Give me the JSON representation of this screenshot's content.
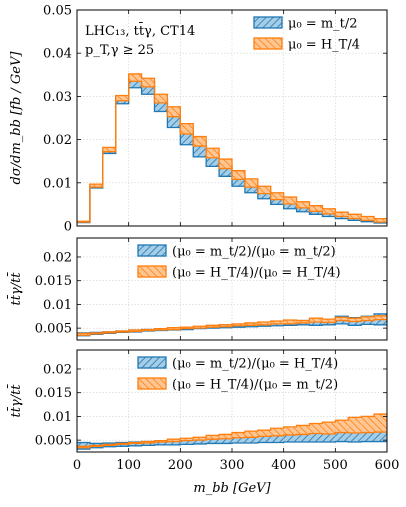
{
  "colors": {
    "blue": "#1f77b4",
    "blue_fill": "#a6cde6",
    "orange": "#ff7f0e",
    "orange_fill": "#ffc694"
  },
  "chart_data": [
    {
      "type": "line",
      "subtype": "step-band",
      "panel": "main",
      "ylabel": "dσ/dm_bb [fb / GeV]",
      "xlim": [
        0,
        600
      ],
      "ylim": [
        0,
        0.05
      ],
      "yticks": [
        "0",
        "0.01",
        "0.02",
        "0.03",
        "0.04",
        "0.05"
      ],
      "info": [
        "LHC₁₃, tt̄γ, CT14",
        "p_T,γ ≥ 25"
      ],
      "legend_position": "top-right",
      "bin_edges": [
        0,
        25,
        50,
        75,
        100,
        125,
        150,
        175,
        200,
        225,
        250,
        275,
        300,
        325,
        350,
        375,
        400,
        425,
        450,
        475,
        500,
        525,
        550,
        575,
        600
      ],
      "series": [
        {
          "name": "μ₀ = m_t/2",
          "color": "blue",
          "band_low": [
            0.0008,
            0.0088,
            0.0168,
            0.0283,
            0.032,
            0.0305,
            0.0265,
            0.0228,
            0.0188,
            0.016,
            0.0138,
            0.0115,
            0.0092,
            0.0077,
            0.0063,
            0.005,
            0.004,
            0.0033,
            0.0027,
            0.0022,
            0.0017,
            0.0013,
            0.001,
            0.0007
          ],
          "band_high": [
            0.001,
            0.0096,
            0.018,
            0.03,
            0.0345,
            0.0333,
            0.0295,
            0.0262,
            0.022,
            0.0192,
            0.0165,
            0.014,
            0.0115,
            0.0096,
            0.008,
            0.0065,
            0.0055,
            0.0046,
            0.0038,
            0.0031,
            0.0025,
            0.002,
            0.0016,
            0.0012
          ]
        },
        {
          "name": "μ₀ = H_T/4",
          "color": "orange",
          "band_low": [
            0.0009,
            0.009,
            0.0172,
            0.029,
            0.0335,
            0.0322,
            0.0285,
            0.0253,
            0.0213,
            0.0185,
            0.0158,
            0.0133,
            0.0108,
            0.009,
            0.0075,
            0.0061,
            0.0051,
            0.0042,
            0.0034,
            0.0028,
            0.0022,
            0.0017,
            0.0013,
            0.0009
          ],
          "band_high": [
            0.0011,
            0.0097,
            0.0182,
            0.0302,
            0.0352,
            0.0342,
            0.0305,
            0.0276,
            0.0237,
            0.0207,
            0.018,
            0.0155,
            0.0128,
            0.0109,
            0.0092,
            0.0077,
            0.0067,
            0.0056,
            0.0047,
            0.004,
            0.0032,
            0.0027,
            0.0022,
            0.0017
          ]
        }
      ]
    },
    {
      "type": "line",
      "subtype": "step-band",
      "panel": "ratio1",
      "ylabel": "tt̄γ/tt̄",
      "xlim": [
        0,
        600
      ],
      "ylim": [
        0.0025,
        0.024
      ],
      "yticks": [
        "0.005",
        "0.01",
        "0.015",
        "0.02"
      ],
      "legend_position": "top-right",
      "bin_edges": [
        0,
        25,
        50,
        75,
        100,
        125,
        150,
        175,
        200,
        225,
        250,
        275,
        300,
        325,
        350,
        375,
        400,
        425,
        450,
        475,
        500,
        525,
        550,
        575,
        600
      ],
      "series": [
        {
          "name": "(μ₀ = m_t/2)/(μ₀ = m_t/2)",
          "color": "blue",
          "band_low": [
            0.0034,
            0.0037,
            0.0039,
            0.0041,
            0.0042,
            0.0044,
            0.0045,
            0.0046,
            0.0047,
            0.0049,
            0.005,
            0.0051,
            0.0052,
            0.0053,
            0.0054,
            0.0055,
            0.0056,
            0.0057,
            0.0056,
            0.0057,
            0.0059,
            0.0056,
            0.0058,
            0.0057
          ],
          "band_high": [
            0.004,
            0.0041,
            0.0042,
            0.0044,
            0.0046,
            0.0047,
            0.0049,
            0.005,
            0.0052,
            0.0053,
            0.0055,
            0.0057,
            0.0058,
            0.0059,
            0.0061,
            0.0063,
            0.0065,
            0.0066,
            0.0068,
            0.0067,
            0.0075,
            0.0072,
            0.0075,
            0.008
          ]
        },
        {
          "name": "(μ₀ = H_T/4)/(μ₀ = H_T/4)",
          "color": "orange",
          "band_low": [
            0.0035,
            0.0038,
            0.004,
            0.0042,
            0.0043,
            0.0045,
            0.0046,
            0.0047,
            0.0049,
            0.005,
            0.0052,
            0.0053,
            0.0055,
            0.0056,
            0.0057,
            0.0059,
            0.0059,
            0.0061,
            0.0063,
            0.0062,
            0.0066,
            0.0064,
            0.0066,
            0.0068
          ],
          "band_high": [
            0.0039,
            0.004,
            0.0042,
            0.0044,
            0.0046,
            0.0047,
            0.0049,
            0.0051,
            0.0052,
            0.0054,
            0.0056,
            0.0057,
            0.0059,
            0.0061,
            0.0063,
            0.0065,
            0.0067,
            0.0066,
            0.0071,
            0.0069,
            0.0073,
            0.0071,
            0.0074,
            0.0076
          ]
        }
      ]
    },
    {
      "type": "line",
      "subtype": "step-band",
      "panel": "ratio2",
      "ylabel": "tt̄γ/tt̄",
      "xlabel": "m_bb [GeV]",
      "xlim": [
        0,
        600
      ],
      "ylim": [
        0.0025,
        0.024
      ],
      "yticks": [
        "0.005",
        "0.01",
        "0.015",
        "0.02"
      ],
      "xticks": [
        "0",
        "100",
        "200",
        "300",
        "400",
        "500",
        "600"
      ],
      "legend_position": "top-right",
      "bin_edges": [
        0,
        25,
        50,
        75,
        100,
        125,
        150,
        175,
        200,
        225,
        250,
        275,
        300,
        325,
        350,
        375,
        400,
        425,
        450,
        475,
        500,
        525,
        550,
        575,
        600
      ],
      "series": [
        {
          "name": "(μ₀ = m_t/2)/(μ₀ = H_T/4)",
          "color": "blue",
          "band_low": [
            0.0031,
            0.0034,
            0.0036,
            0.0037,
            0.0038,
            0.0039,
            0.004,
            0.004,
            0.0041,
            0.0042,
            0.0043,
            0.0043,
            0.0044,
            0.0044,
            0.0045,
            0.0045,
            0.0046,
            0.0046,
            0.0046,
            0.0046,
            0.0047,
            0.0046,
            0.0047,
            0.0047
          ],
          "band_high": [
            0.0045,
            0.0043,
            0.0044,
            0.0045,
            0.0046,
            0.0047,
            0.0049,
            0.005,
            0.0052,
            0.0053,
            0.0055,
            0.0057,
            0.0058,
            0.0059,
            0.0061,
            0.0063,
            0.0065,
            0.0066,
            0.0068,
            0.0067,
            0.0075,
            0.0072,
            0.0075,
            0.0078
          ]
        },
        {
          "name": "(μ₀ = H_T/4)/(μ₀ = m_t/2)",
          "color": "orange",
          "band_low": [
            0.0034,
            0.0037,
            0.0039,
            0.0041,
            0.0043,
            0.0044,
            0.0046,
            0.0047,
            0.0049,
            0.005,
            0.0052,
            0.0053,
            0.0055,
            0.0056,
            0.0058,
            0.0059,
            0.0061,
            0.0062,
            0.0064,
            0.0063,
            0.0066,
            0.0065,
            0.0066,
            0.0067
          ],
          "band_high": [
            0.0037,
            0.0039,
            0.0041,
            0.0043,
            0.0045,
            0.0047,
            0.0049,
            0.0052,
            0.0054,
            0.0056,
            0.006,
            0.0062,
            0.0066,
            0.0069,
            0.0071,
            0.0075,
            0.0078,
            0.0081,
            0.0085,
            0.0088,
            0.0092,
            0.0098,
            0.01,
            0.0105
          ]
        }
      ]
    }
  ]
}
